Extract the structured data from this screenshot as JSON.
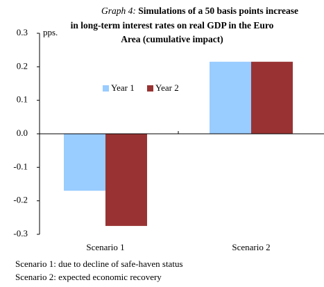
{
  "chart_data": {
    "type": "bar",
    "title_prefix": "Graph 4:",
    "title_lines": [
      "Simulations of a 50 basis points increase",
      "in long-term interest rates on real GDP in the Euro",
      "Area  (cumulative impact)"
    ],
    "y_unit": "pps.",
    "categories": [
      "Scenario 1",
      "Scenario 2"
    ],
    "series": [
      {
        "name": "Year 1",
        "color": "#99ccff",
        "values": [
          -0.17,
          0.215
        ]
      },
      {
        "name": "Year 2",
        "color": "#993333",
        "values": [
          -0.275,
          0.215
        ]
      }
    ],
    "ylim": [
      -0.3,
      0.3
    ],
    "yticks": [
      -0.3,
      -0.2,
      -0.1,
      {
        "value": 0,
        "label": "0.0"
      },
      0.1,
      0.2,
      0.3
    ],
    "legend": "top-center",
    "notes": [
      "Scenario 1: due to decline of safe-haven status",
      "Scenario 2: expected economic recovery"
    ]
  }
}
